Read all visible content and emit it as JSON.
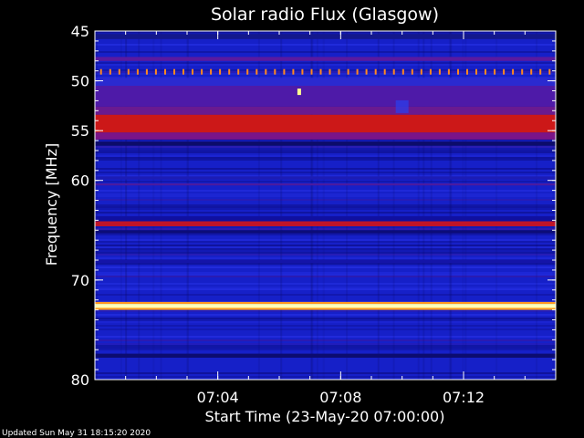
{
  "chart_data": {
    "type": "heatmap",
    "title": "Solar radio Flux (Glasgow)",
    "xlabel": "Start Time (23-May-20 07:00:00)",
    "ylabel": "Frequency [MHz]",
    "x_unit": "minutes after 07:00",
    "xlim": [
      0,
      15
    ],
    "ylim": [
      45,
      80
    ],
    "y_inverted": true,
    "xticks": [
      {
        "value": 4,
        "label": "07:04"
      },
      {
        "value": 8,
        "label": "07:08"
      },
      {
        "value": 12,
        "label": "07:12"
      }
    ],
    "yticks": [
      {
        "value": 45,
        "label": "45"
      },
      {
        "value": 50,
        "label": "50"
      },
      {
        "value": 55,
        "label": "55"
      },
      {
        "value": 60,
        "label": "60"
      },
      {
        "value": 70,
        "label": "70"
      },
      {
        "value": 80,
        "label": "80"
      }
    ],
    "colormap": [
      "#0a0a6e",
      "#1a1ad8",
      "#4a14a0",
      "#b0101c",
      "#e03000",
      "#ff9a20",
      "#ffffa0"
    ],
    "background_color": "#1620c8",
    "bands": [
      {
        "freq_min": 45.3,
        "freq_max": 45.8,
        "color": "#14188c"
      },
      {
        "freq_min": 47.6,
        "freq_max": 48.0,
        "color": "#5a1aa0"
      },
      {
        "freq_min": 49.7,
        "freq_max": 50.5,
        "color": "#2a2ad0"
      },
      {
        "freq_min": 50.5,
        "freq_max": 52.6,
        "color": "#4e1aa8"
      },
      {
        "freq_min": 52.6,
        "freq_max": 53.4,
        "color": "#6a1a90"
      },
      {
        "freq_min": 53.4,
        "freq_max": 55.2,
        "color": "#cc1818"
      },
      {
        "freq_min": 55.2,
        "freq_max": 55.9,
        "color": "#7a1488"
      },
      {
        "freq_min": 56.1,
        "freq_max": 56.5,
        "color": "#0c0c6a"
      },
      {
        "freq_min": 59.6,
        "freq_max": 59.9,
        "color": "#1c1cb4"
      },
      {
        "freq_min": 60.3,
        "freq_max": 60.5,
        "color": "#4a1aa0"
      },
      {
        "freq_min": 63.6,
        "freq_max": 64.1,
        "color": "#1010a0"
      },
      {
        "freq_min": 64.1,
        "freq_max": 64.6,
        "color": "#c01428"
      },
      {
        "freq_min": 65.0,
        "freq_max": 65.3,
        "color": "#0c0c78"
      },
      {
        "freq_min": 68.0,
        "freq_max": 68.3,
        "color": "#1414a8"
      },
      {
        "freq_min": 72.2,
        "freq_max": 72.4,
        "color": "#ff9a20"
      },
      {
        "freq_min": 72.4,
        "freq_max": 72.8,
        "color": "#ffffb4"
      },
      {
        "freq_min": 72.8,
        "freq_max": 73.0,
        "color": "#ff9a20"
      },
      {
        "freq_min": 77.4,
        "freq_max": 77.8,
        "color": "#0c0c70"
      }
    ],
    "periodic_spikes": {
      "freq": 49.1,
      "t_start": 0.2,
      "t_end": 14.8,
      "count": 50,
      "color": "#ff8a20"
    },
    "bursts": [
      {
        "t": 6.65,
        "freq": 51.1,
        "color": "#ffff90"
      },
      {
        "t": 10.0,
        "freq": 52.6,
        "color": "#2a40f0"
      }
    ]
  },
  "footer": {
    "updated_text": "Updated Sun May 31 18:15:20 2020"
  }
}
